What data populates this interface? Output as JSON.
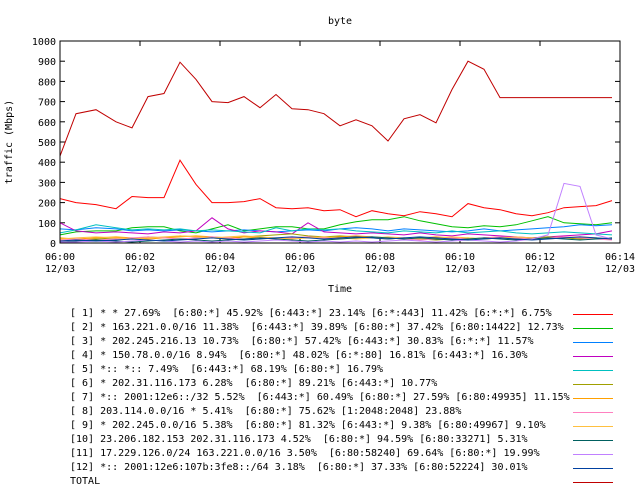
{
  "chart_data": {
    "type": "line",
    "title": "byte",
    "xlabel": "Time",
    "ylabel": "traffic (Mbps)",
    "ylim": [
      0,
      1000
    ],
    "yticks": [
      0,
      100,
      200,
      300,
      400,
      500,
      600,
      700,
      800,
      900,
      1000
    ],
    "xticks": [
      {
        "t": 0,
        "line1": "06:00",
        "line2": "12/03"
      },
      {
        "t": 2,
        "line1": "06:02",
        "line2": "12/03"
      },
      {
        "t": 4,
        "line1": "06:04",
        "line2": "12/03"
      },
      {
        "t": 6,
        "line1": "06:06",
        "line2": "12/03"
      },
      {
        "t": 8,
        "line1": "06:08",
        "line2": "12/03"
      },
      {
        "t": 10,
        "line1": "06:10",
        "line2": "12/03"
      },
      {
        "t": 12,
        "line1": "06:12",
        "line2": "12/03"
      },
      {
        "t": 14,
        "line1": "06:14",
        "line2": "12/03"
      }
    ],
    "xlim": [
      0,
      14
    ],
    "x": [
      0,
      0.4,
      0.9,
      1.4,
      1.8,
      2.2,
      2.6,
      3.0,
      3.4,
      3.8,
      4.2,
      4.6,
      5.0,
      5.4,
      5.8,
      6.2,
      6.6,
      7.0,
      7.4,
      7.8,
      8.2,
      8.6,
      9.0,
      9.4,
      9.8,
      10.2,
      10.6,
      11.0,
      11.4,
      11.8,
      12.2,
      12.6,
      13.0,
      13.4,
      13.8
    ],
    "series": [
      {
        "name": "[ 1] * * 27.69%  [6:80:*] 45.92% [6:443:*] 23.14% [6:*:443] 11.42% [6:*:*] 6.75%",
        "color": "#ff0000",
        "values": [
          220,
          200,
          190,
          170,
          230,
          225,
          225,
          410,
          290,
          200,
          200,
          205,
          220,
          175,
          170,
          175,
          160,
          165,
          130,
          160,
          145,
          135,
          155,
          145,
          130,
          195,
          175,
          165,
          145,
          135,
          150,
          175,
          180,
          185,
          210
        ]
      },
      {
        "name": "[ 2] * 163.221.0.0/16 11.38%  [6:443:*] 39.89% [6:80:*] 37.42% [6:80:14422] 12.73%",
        "color": "#00c000",
        "values": [
          40,
          55,
          60,
          60,
          75,
          80,
          80,
          60,
          50,
          70,
          90,
          60,
          70,
          80,
          80,
          70,
          70,
          90,
          105,
          115,
          115,
          130,
          110,
          95,
          80,
          75,
          85,
          80,
          90,
          110,
          130,
          100,
          95,
          90,
          100
        ]
      },
      {
        "name": "[ 3] * 202.245.216.13 10.73%  [6:80:*] 57.42% [6:443:*] 30.83% [6:*:*] 11.57%",
        "color": "#0080ff",
        "values": [
          70,
          65,
          75,
          70,
          60,
          65,
          60,
          65,
          60,
          55,
          60,
          65,
          60,
          55,
          60,
          65,
          60,
          70,
          75,
          70,
          60,
          70,
          65,
          60,
          55,
          60,
          70,
          60,
          65,
          70,
          75,
          80,
          90,
          85,
          90
        ]
      },
      {
        "name": "[ 4] * 150.78.0.0/16 8.94%  [6:80:*] 48.02% [6:*:80] 16.81% [6:443:*] 16.30%",
        "color": "#c000c0",
        "values": [
          100,
          60,
          50,
          55,
          50,
          45,
          55,
          50,
          60,
          125,
          70,
          50,
          60,
          55,
          45,
          100,
          55,
          50,
          45,
          50,
          45,
          40,
          50,
          40,
          35,
          45,
          40,
          35,
          30,
          25,
          30,
          35,
          40,
          45,
          60
        ]
      },
      {
        "name": "[ 5] *:: *:: 7.49%  [6:443:*] 68.19% [6:80:*] 16.79%",
        "color": "#00c0c0",
        "values": [
          50,
          65,
          90,
          75,
          65,
          70,
          65,
          70,
          60,
          65,
          60,
          55,
          50,
          75,
          60,
          70,
          65,
          70,
          60,
          55,
          50,
          60,
          55,
          50,
          60,
          50,
          55,
          60,
          50,
          45,
          50,
          55,
          50,
          45,
          40
        ]
      },
      {
        "name": "[ 6] * 202.31.116.173 6.28%  [6:80:*] 89.21% [6:443:*] 10.77%",
        "color": "#a0a000",
        "values": [
          10,
          15,
          20,
          25,
          20,
          30,
          25,
          35,
          30,
          25,
          20,
          30,
          35,
          40,
          45,
          35,
          30,
          35,
          30,
          25,
          20,
          25,
          20,
          15,
          20,
          25,
          20,
          25,
          20,
          25,
          30,
          25,
          20,
          25,
          20
        ]
      },
      {
        "name": "[ 7] *:: 2001:12e6::/32 5.52%  [6:443:*] 60.49% [6:80:*] 27.59% [6:80:49935] 11.15%",
        "color": "#ffa000",
        "values": [
          25,
          20,
          25,
          30,
          25,
          20,
          25,
          30,
          35,
          30,
          25,
          30,
          25,
          20,
          25,
          30,
          25,
          30,
          35,
          30,
          25,
          20,
          25,
          30,
          25,
          20,
          25,
          30,
          25,
          20,
          25,
          30,
          25,
          20,
          25
        ]
      },
      {
        "name": "[ 8] 203.114.0.0/16 * 5.41%  [6:80:*] 75.62% [1:2048:2048] 23.88%",
        "color": "#ff80c0",
        "values": [
          15,
          20,
          15,
          20,
          25,
          30,
          25,
          20,
          25,
          30,
          25,
          20,
          25,
          20,
          25,
          30,
          25,
          20,
          25,
          30,
          25,
          20,
          15,
          20,
          25,
          20,
          25,
          30,
          25,
          20,
          25,
          30,
          25,
          20,
          15
        ]
      },
      {
        "name": "[ 9] * 202.245.0.0/16 5.38%  [6:80:*] 81.32% [6:443:*] 9.38% [6:80:49967] 9.10%",
        "color": "#ffc040",
        "values": [
          20,
          25,
          30,
          25,
          20,
          25,
          30,
          35,
          30,
          25,
          30,
          35,
          30,
          25,
          20,
          25,
          30,
          25,
          20,
          25,
          30,
          25,
          20,
          25,
          30,
          25,
          20,
          25,
          30,
          25,
          20,
          25,
          30,
          25,
          20
        ]
      },
      {
        "name": "[10] 23.206.182.153 202.31.116.173 4.52%  [6:80:*] 94.59% [6:80:33271] 5.31%",
        "color": "#006060",
        "values": [
          5,
          10,
          15,
          10,
          5,
          10,
          15,
          20,
          15,
          10,
          15,
          20,
          25,
          20,
          15,
          10,
          15,
          20,
          25,
          30,
          25,
          20,
          25,
          20,
          15,
          20,
          25,
          20,
          15,
          20,
          25,
          20,
          15,
          20,
          25
        ]
      },
      {
        "name": "[11] 17.229.126.0/24 163.221.0.0/16 3.50%  [6:80:58240] 69.64% [6:80:*] 19.99%",
        "color": "#c080ff",
        "values": [
          5,
          5,
          10,
          5,
          10,
          15,
          10,
          5,
          10,
          5,
          10,
          5,
          10,
          15,
          10,
          5,
          10,
          5,
          10,
          5,
          10,
          15,
          10,
          5,
          10,
          15,
          10,
          5,
          10,
          20,
          40,
          295,
          280,
          40,
          20
        ]
      },
      {
        "name": "[12] *:: 2001:12e6:107b:3fe8::/64 3.18%  [6:80:*] 37.33% [6:80:52224] 30.01%",
        "color": "#0040a0",
        "values": [
          10,
          15,
          10,
          15,
          20,
          15,
          10,
          15,
          20,
          25,
          20,
          15,
          20,
          25,
          30,
          25,
          20,
          25,
          30,
          25,
          20,
          25,
          30,
          25,
          20,
          15,
          20,
          25,
          20,
          15,
          20,
          25,
          30,
          25,
          20
        ]
      },
      {
        "name": "TOTAL",
        "color": "#c00000",
        "values": [
          430,
          640,
          660,
          600,
          570,
          725,
          740,
          895,
          810,
          700,
          695,
          725,
          670,
          735,
          665,
          660,
          640,
          580,
          610,
          580,
          505,
          615,
          635,
          595,
          760,
          900,
          860,
          720,
          720,
          720,
          720,
          720,
          720,
          720,
          720
        ]
      }
    ]
  }
}
